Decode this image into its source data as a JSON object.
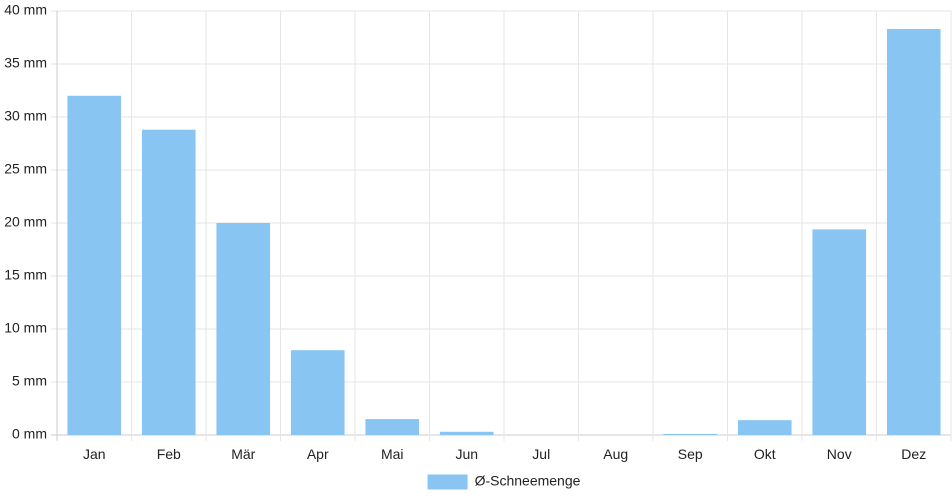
{
  "chart_data": {
    "type": "bar",
    "categories": [
      "Jan",
      "Feb",
      "Mär",
      "Apr",
      "Mai",
      "Jun",
      "Jul",
      "Aug",
      "Sep",
      "Okt",
      "Nov",
      "Dez"
    ],
    "series": [
      {
        "name": "Ø-Schneemenge",
        "values": [
          32.0,
          28.8,
          20.0,
          8.0,
          1.5,
          0.3,
          0,
          0,
          0.1,
          1.4,
          19.4,
          38.3
        ],
        "color": "#89c5f2"
      }
    ],
    "y_ticks": [
      "0 mm",
      "5 mm",
      "10 mm",
      "15 mm",
      "20 mm",
      "25 mm",
      "30 mm",
      "35 mm",
      "40 mm"
    ],
    "ylim": [
      0,
      40
    ],
    "y_unit": "mm",
    "grid": true,
    "legend_position": "bottom-center",
    "grid_color": "#e6e6e6",
    "axis_color": "#cccccc"
  }
}
